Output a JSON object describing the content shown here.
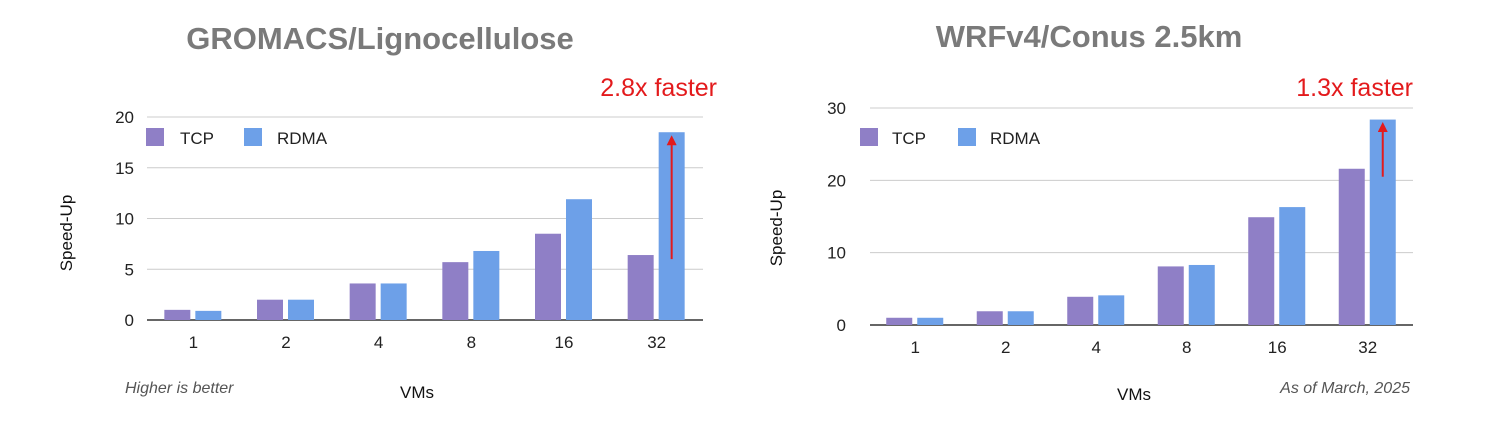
{
  "colors": {
    "tcp": "#8f7fc6",
    "rdma": "#6da0e8",
    "annotation": "#e31a1c",
    "grid": "#cccccc",
    "axis": "#333333"
  },
  "chart_data": [
    {
      "type": "bar",
      "title": "GROMACS/Lignocellulose",
      "xlabel": "VMs",
      "ylabel": "Speed-Up",
      "categories": [
        "1",
        "2",
        "4",
        "8",
        "16",
        "32"
      ],
      "series": [
        {
          "name": "TCP",
          "values": [
            1.0,
            2.0,
            3.6,
            5.7,
            8.5,
            6.4
          ]
        },
        {
          "name": "RDMA",
          "values": [
            0.9,
            2.0,
            3.6,
            6.8,
            11.9,
            18.5
          ]
        }
      ],
      "ylim": [
        0,
        20
      ],
      "yticks": [
        "0",
        "5",
        "10",
        "15",
        "20"
      ],
      "grid": true,
      "legend": "top-left",
      "annotation": {
        "text": "2.8x faster",
        "from": 6,
        "to": 18.3,
        "category": "32"
      },
      "note": "Higher is better"
    },
    {
      "type": "bar",
      "title": "WRFv4/Conus 2.5km",
      "xlabel": "VMs",
      "ylabel": "Speed-Up",
      "categories": [
        "1",
        "2",
        "4",
        "8",
        "16",
        "32"
      ],
      "series": [
        {
          "name": "TCP",
          "values": [
            1.0,
            1.9,
            3.9,
            8.1,
            14.9,
            21.6
          ]
        },
        {
          "name": "RDMA",
          "values": [
            1.0,
            1.9,
            4.1,
            8.3,
            16.3,
            28.4
          ]
        }
      ],
      "ylim": [
        0,
        30
      ],
      "yticks": [
        "0",
        "10",
        "20",
        "30"
      ],
      "grid": true,
      "legend": "top-left",
      "annotation": {
        "text": "1.3x faster",
        "from": 20.5,
        "to": 28.2,
        "category": "32"
      },
      "note": "As of March, 2025"
    }
  ]
}
